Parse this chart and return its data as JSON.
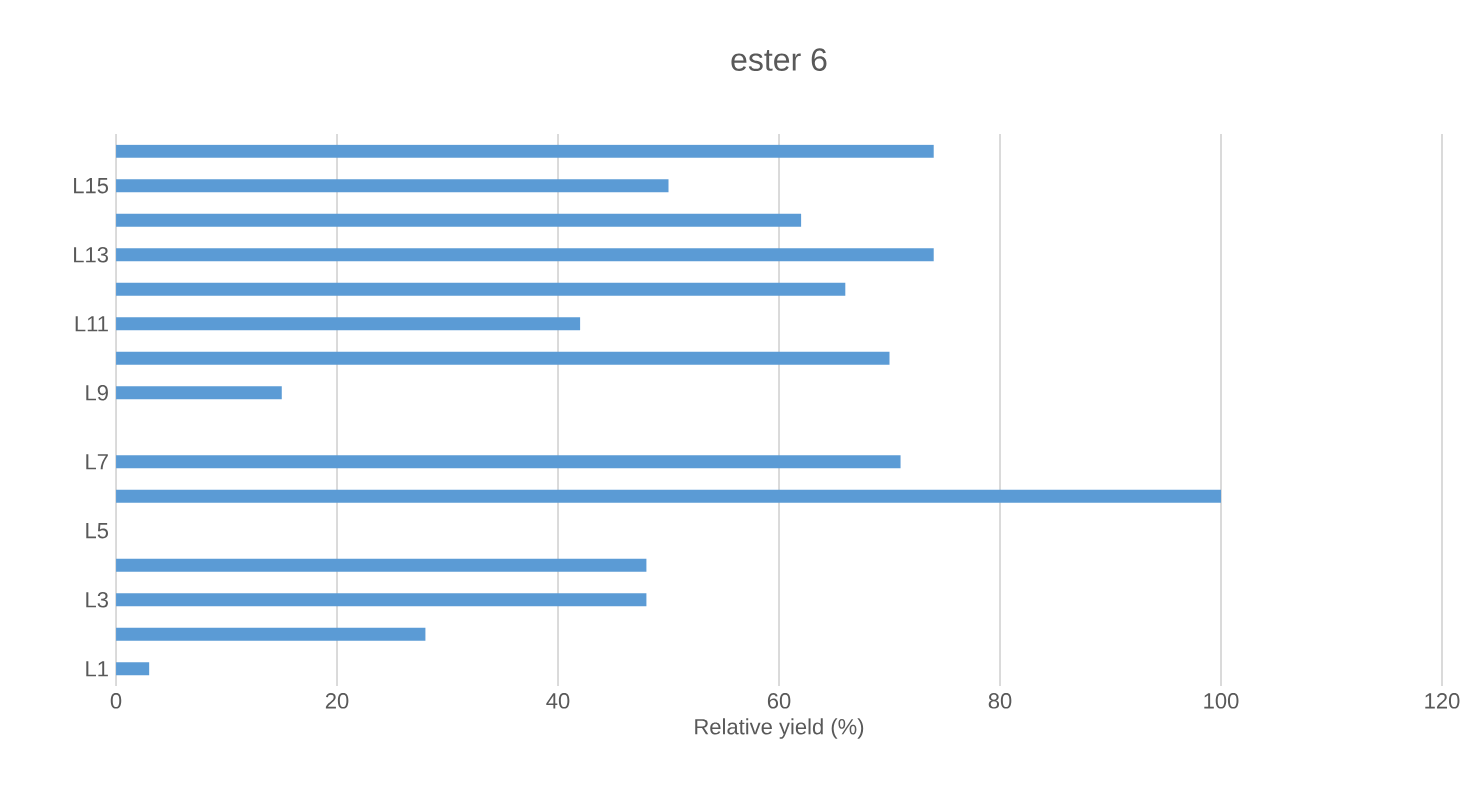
{
  "chart_data": {
    "type": "bar",
    "orientation": "horizontal",
    "title": "ester 6",
    "xlabel": "Relative yield (%)",
    "categories": [
      null,
      "L15",
      null,
      "L13",
      null,
      "L11",
      null,
      "L9",
      null,
      "L7",
      null,
      "L5",
      null,
      "L3",
      null,
      "L1"
    ],
    "values": [
      74,
      50,
      62,
      74,
      66,
      42,
      70,
      15,
      null,
      71,
      100,
      null,
      48,
      48,
      28,
      3
    ],
    "color": "#5b9bd5",
    "xlim": [
      0,
      120
    ],
    "xticks": [
      0,
      20,
      40,
      60,
      80,
      100,
      120
    ],
    "grid": "x"
  }
}
